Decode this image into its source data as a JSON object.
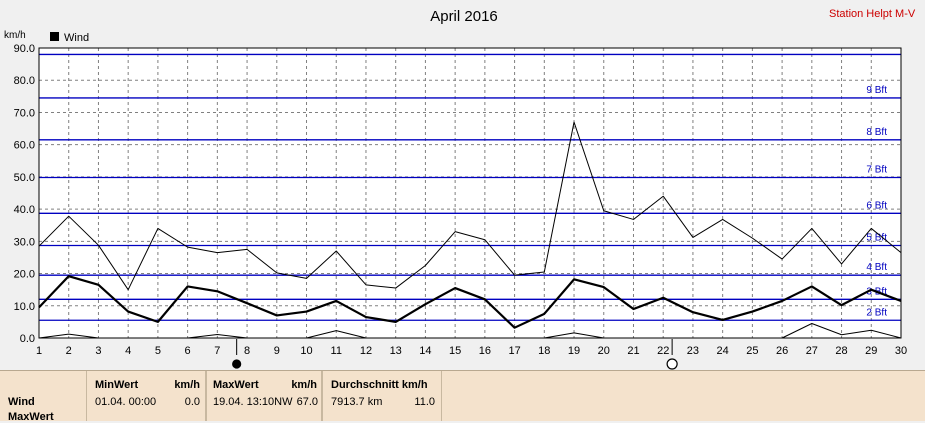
{
  "title": "April 2016",
  "station": "Station Helpt M-V",
  "chart_data": {
    "type": "line",
    "title": "April 2016",
    "ylabel": "km/h",
    "ylim": [
      0,
      90
    ],
    "yticks": [
      "0.0",
      "10.0",
      "20.0",
      "30.0",
      "40.0",
      "50.0",
      "60.0",
      "70.0",
      "80.0",
      "90.0"
    ],
    "x": [
      1,
      2,
      3,
      4,
      5,
      6,
      7,
      8,
      9,
      10,
      11,
      12,
      13,
      14,
      15,
      16,
      17,
      18,
      19,
      20,
      21,
      22,
      23,
      24,
      25,
      26,
      27,
      28,
      29,
      30
    ],
    "xticks": [
      "1",
      "2",
      "3",
      "4",
      "5",
      "6",
      "7",
      "8",
      "9",
      "10",
      "11",
      "12",
      "13",
      "14",
      "15",
      "16",
      "17",
      "18",
      "19",
      "20",
      "21",
      "22",
      "23",
      "24",
      "25",
      "26",
      "27",
      "28",
      "29",
      "30"
    ],
    "legend": "top-left",
    "series": [
      {
        "name": "Wind",
        "role": "avg",
        "values": [
          9.5,
          19.2,
          16.5,
          8.2,
          5.0,
          16.0,
          14.5,
          10.8,
          7.0,
          8.2,
          11.5,
          6.5,
          5.0,
          10.5,
          15.5,
          12.0,
          3.2,
          7.5,
          18.2,
          15.8,
          9.0,
          12.5,
          8.0,
          5.6,
          8.2,
          11.5,
          16.0,
          10.2,
          15.0,
          11.5
        ]
      },
      {
        "role": "max",
        "values": [
          28.5,
          37.8,
          28.8,
          15.0,
          34.0,
          28.2,
          26.5,
          27.5,
          20.2,
          18.5,
          27.0,
          16.5,
          15.5,
          22.5,
          33.0,
          30.5,
          19.5,
          20.5,
          67.0,
          39.5,
          36.8,
          44.0,
          31.2,
          36.8,
          31.0,
          24.5,
          34.0,
          23.0,
          34.0,
          26.5
        ]
      },
      {
        "role": "min",
        "values": [
          0,
          1.2,
          0,
          0,
          0,
          0,
          1.1,
          0,
          0,
          0,
          2.3,
          0,
          0,
          0,
          0,
          0,
          0,
          0,
          1.6,
          0,
          0,
          0,
          0,
          0,
          0,
          0,
          4.5,
          1.0,
          2.4,
          0
        ]
      }
    ],
    "hlines": [
      {
        "value": 5.5,
        "label": "2 Bft"
      },
      {
        "value": 12,
        "label": "3 Bft"
      },
      {
        "value": 19.5,
        "label": "4 Bft"
      },
      {
        "value": 28.7,
        "label": "5 Bft"
      },
      {
        "value": 38.7,
        "label": "6 Bft"
      },
      {
        "value": 49.8,
        "label": "7 Bft"
      },
      {
        "value": 61.5,
        "label": "8 Bft"
      },
      {
        "value": 74.5,
        "label": "9 Bft"
      },
      {
        "value": 88,
        "label": ""
      }
    ],
    "markers": [
      {
        "x": 7.65,
        "symbol": "full-moon"
      },
      {
        "x": 22.3,
        "symbol": "new-moon"
      }
    ],
    "colors": {
      "grid": "#808080",
      "hline": "#0000c0",
      "line": "#000000",
      "background": "#ffffff"
    }
  },
  "footer": {
    "row_label": "Wind",
    "row2_label": "MaxWert",
    "min_header": "MinWert",
    "min_unit": "km/h",
    "min_date": "01.04.  00:00",
    "min_value": "0.0",
    "max_header": "MaxWert",
    "max_unit": "km/h",
    "max_date": "19.04.  13:10NW",
    "max_value": "67.0",
    "avg_header": "Durchschnitt km/h",
    "avg_dist": "7913.7 km",
    "avg_value": "11.0"
  }
}
